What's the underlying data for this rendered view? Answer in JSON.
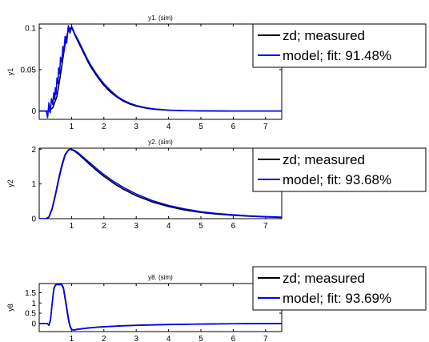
{
  "chart_data": [
    {
      "type": "line",
      "title": "y1. (sim)",
      "ylabel": "y1",
      "xlim": [
        0,
        7.5
      ],
      "ylim": [
        -0.01,
        0.105
      ],
      "xticks": [
        1,
        2,
        3,
        4,
        5,
        6,
        7
      ],
      "yticks": [
        0,
        0.05,
        0.1
      ],
      "ytick_labels": [
        "0",
        "0.05",
        "0.1"
      ],
      "legend_position": "outside-right",
      "series": [
        {
          "name": "zd; measured",
          "color": "#000000",
          "x": [
            0.0,
            0.3,
            0.42,
            0.55,
            0.65,
            0.75,
            0.82,
            0.9,
            0.95,
            1.0,
            1.05,
            1.1,
            1.2,
            1.3,
            1.4,
            1.5,
            1.6,
            1.75,
            1.9,
            2.0,
            2.2,
            2.4,
            2.6,
            2.8,
            3.0,
            3.3,
            3.6,
            4.0,
            4.5,
            5.0,
            5.5,
            6.0,
            6.5,
            7.0,
            7.5
          ],
          "y": [
            0,
            0,
            0.004,
            0.018,
            0.042,
            0.068,
            0.086,
            0.097,
            0.1,
            0.1,
            0.097,
            0.092,
            0.084,
            0.076,
            0.068,
            0.06,
            0.053,
            0.044,
            0.036,
            0.031,
            0.023,
            0.017,
            0.012,
            0.0085,
            0.006,
            0.0035,
            0.002,
            0.001,
            0.0004,
            0.0002,
            0.0001,
            0,
            0,
            0,
            0
          ]
        },
        {
          "name": "model; fit: 91.48%",
          "color": "#0000ff",
          "x": [
            0.0,
            0.22,
            0.26,
            0.3,
            0.34,
            0.38,
            0.42,
            0.45,
            0.48,
            0.5,
            0.52,
            0.55,
            0.58,
            0.6,
            0.63,
            0.66,
            0.7,
            0.73,
            0.76,
            0.8,
            0.85,
            0.9,
            0.95,
            1.0,
            1.05,
            1.1,
            1.2,
            1.3,
            1.4,
            1.5,
            1.6,
            1.75,
            1.9,
            2.0,
            2.2,
            2.4,
            2.6,
            2.8,
            3.0,
            3.3,
            3.6,
            4.0,
            4.5,
            5.0,
            5.5,
            6.0,
            6.5,
            7.0,
            7.5
          ],
          "y": [
            0,
            0,
            -0.008,
            0.01,
            -0.002,
            0.015,
            0.008,
            0.022,
            0.014,
            0.028,
            0.02,
            0.04,
            0.033,
            0.052,
            0.045,
            0.065,
            0.058,
            0.078,
            0.07,
            0.09,
            0.082,
            0.103,
            0.094,
            0.102,
            0.098,
            0.093,
            0.086,
            0.078,
            0.07,
            0.062,
            0.055,
            0.046,
            0.038,
            0.033,
            0.025,
            0.018,
            0.013,
            0.0095,
            0.0068,
            0.004,
            0.0024,
            0.0012,
            0.0005,
            0.0002,
            0.0001,
            0,
            0,
            0,
            0
          ]
        }
      ]
    },
    {
      "type": "line",
      "title": "y2. (sim)",
      "ylabel": "y2",
      "xlim": [
        0,
        7.5
      ],
      "ylim": [
        0,
        2.03
      ],
      "xticks": [
        1,
        2,
        3,
        4,
        5,
        6,
        7
      ],
      "yticks": [
        0,
        1,
        2
      ],
      "ytick_labels": [
        "0",
        "1",
        "2"
      ],
      "legend_position": "outside-right",
      "series": [
        {
          "name": "zd; measured",
          "color": "#000000",
          "x": [
            0.0,
            0.2,
            0.3,
            0.4,
            0.5,
            0.6,
            0.7,
            0.8,
            0.9,
            0.95,
            1.0,
            1.1,
            1.2,
            1.4,
            1.6,
            1.8,
            2.0,
            2.3,
            2.6,
            3.0,
            3.5,
            4.0,
            4.5,
            5.0,
            5.5,
            6.0,
            6.5,
            7.0,
            7.5
          ],
          "y": [
            0,
            0,
            0.05,
            0.3,
            0.7,
            1.15,
            1.55,
            1.85,
            1.98,
            2.0,
            1.99,
            1.94,
            1.87,
            1.7,
            1.53,
            1.37,
            1.22,
            1.02,
            0.85,
            0.66,
            0.48,
            0.35,
            0.25,
            0.18,
            0.13,
            0.095,
            0.07,
            0.05,
            0.035
          ]
        },
        {
          "name": "model; fit: 93.68%",
          "color": "#0000ff",
          "x": [
            0.0,
            0.2,
            0.3,
            0.4,
            0.5,
            0.6,
            0.7,
            0.8,
            0.9,
            0.95,
            1.0,
            1.1,
            1.2,
            1.4,
            1.6,
            1.8,
            2.0,
            2.3,
            2.6,
            3.0,
            3.5,
            4.0,
            4.5,
            5.0,
            5.5,
            6.0,
            6.5,
            7.0,
            7.5
          ],
          "y": [
            0,
            0,
            0.04,
            0.27,
            0.66,
            1.1,
            1.5,
            1.82,
            1.97,
            2.0,
            2.0,
            1.96,
            1.9,
            1.74,
            1.58,
            1.42,
            1.27,
            1.07,
            0.9,
            0.71,
            0.52,
            0.38,
            0.28,
            0.2,
            0.15,
            0.11,
            0.08,
            0.06,
            0.045
          ]
        }
      ]
    },
    {
      "type": "line",
      "title": "y8. (sim)",
      "ylabel": "y8",
      "xlim": [
        0,
        7.5
      ],
      "ylim": [
        -0.4,
        1.95
      ],
      "xticks": [
        1,
        2,
        3,
        4,
        5,
        6,
        7
      ],
      "yticks": [
        0,
        0.5,
        1,
        1.5
      ],
      "ytick_labels": [
        "0",
        "0.5",
        "1",
        "1.5"
      ],
      "legend_position": "outside-right",
      "series": [
        {
          "name": "zd; measured",
          "color": "#000000",
          "x": [
            0.0,
            0.25,
            0.3,
            0.35,
            0.4,
            0.45,
            0.5,
            0.55,
            0.6,
            0.65,
            0.7,
            0.75,
            0.8,
            0.85,
            0.9,
            0.95,
            1.0,
            1.05,
            1.1,
            1.2,
            1.3,
            1.5,
            1.8,
            2.0,
            2.5,
            3.0,
            3.5,
            4.0,
            4.5,
            5.0,
            5.5,
            6.0,
            6.5,
            7.0,
            7.5
          ],
          "y": [
            0,
            0,
            -0.08,
            0.2,
            1.0,
            1.7,
            1.88,
            1.9,
            1.9,
            1.9,
            1.88,
            1.7,
            1.2,
            0.7,
            0.2,
            -0.15,
            -0.3,
            -0.32,
            -0.31,
            -0.28,
            -0.26,
            -0.22,
            -0.18,
            -0.16,
            -0.12,
            -0.09,
            -0.07,
            -0.05,
            -0.04,
            -0.03,
            -0.02,
            -0.015,
            -0.01,
            -0.008,
            -0.005
          ]
        },
        {
          "name": "model; fit: 93.69%",
          "color": "#0000ff",
          "x": [
            0.0,
            0.25,
            0.3,
            0.35,
            0.4,
            0.45,
            0.5,
            0.55,
            0.6,
            0.65,
            0.7,
            0.75,
            0.8,
            0.85,
            0.9,
            0.95,
            1.0,
            1.05,
            1.1,
            1.2,
            1.3,
            1.5,
            1.8,
            2.0,
            2.5,
            3.0,
            3.5,
            4.0,
            4.5,
            5.0,
            5.5,
            6.0,
            6.5,
            7.0,
            7.5
          ],
          "y": [
            0,
            0,
            -0.1,
            0.15,
            0.95,
            1.65,
            1.86,
            1.9,
            1.9,
            1.9,
            1.9,
            1.75,
            1.3,
            0.8,
            0.3,
            -0.1,
            -0.28,
            -0.33,
            -0.32,
            -0.29,
            -0.27,
            -0.23,
            -0.19,
            -0.17,
            -0.13,
            -0.1,
            -0.08,
            -0.06,
            -0.045,
            -0.035,
            -0.025,
            -0.018,
            -0.012,
            -0.009,
            -0.006
          ]
        }
      ]
    }
  ]
}
